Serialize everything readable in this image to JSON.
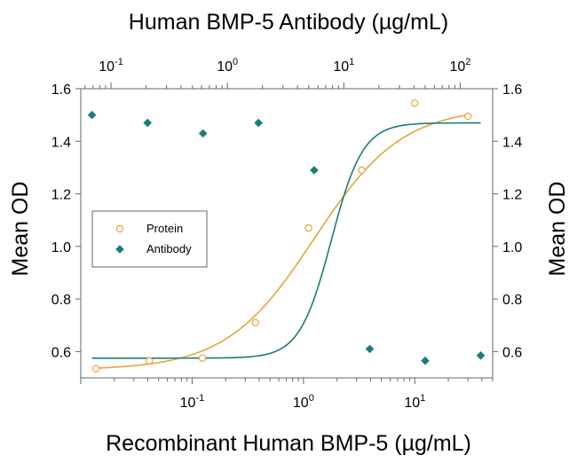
{
  "chart_data": {
    "type": "scatter",
    "title": "Human BMP-5 Antibody (µg/mL)",
    "xlabel": "Recombinant Human BMP-5 (µg/mL)",
    "ylabel": "Mean OD",
    "ylabel_right": "Mean OD",
    "x_scale": "log",
    "xlim": [
      0.01,
      50
    ],
    "top_x_scale": "log",
    "top_xlim": [
      0.055,
      190
    ],
    "ylim": [
      0.5,
      1.6
    ],
    "bottom_ticks": [
      {
        "value": 0.1,
        "base": "10",
        "exp": "-1"
      },
      {
        "value": 1,
        "base": "10",
        "exp": "0"
      },
      {
        "value": 10,
        "base": "10",
        "exp": "1"
      }
    ],
    "top_ticks": [
      {
        "value": 0.1,
        "base": "10",
        "exp": "-1"
      },
      {
        "value": 1,
        "base": "10",
        "exp": "0"
      },
      {
        "value": 10,
        "base": "10",
        "exp": "1"
      },
      {
        "value": 100,
        "base": "10",
        "exp": "2"
      }
    ],
    "y_ticks": [
      "0.6",
      "0.8",
      "1.0",
      "1.2",
      "1.4",
      "1.6"
    ],
    "legend": {
      "position": "left",
      "entries": [
        "Protein",
        "Antibody"
      ]
    },
    "colors": {
      "protein": "#E8A33A",
      "antibody": "#1A7D78"
    },
    "series": [
      {
        "name": "Protein",
        "axis": "bottom",
        "marker": "open-circle",
        "x": [
          0.0137,
          0.0412,
          0.1235,
          0.37,
          1.11,
          3.33,
          10,
          30
        ],
        "y": [
          0.535,
          0.565,
          0.575,
          0.71,
          1.07,
          1.29,
          1.545,
          1.495
        ],
        "fit": {
          "bottom": 0.53,
          "top": 1.53,
          "ec50": 1.25,
          "hill": 1.1
        }
      },
      {
        "name": "Antibody",
        "axis": "top",
        "marker": "filled-diamond",
        "x": [
          0.0686,
          0.206,
          0.617,
          1.85,
          5.56,
          16.7,
          50,
          150
        ],
        "y": [
          1.5,
          1.47,
          1.43,
          1.47,
          1.29,
          0.61,
          0.565,
          0.585
        ],
        "fit": {
          "bottom": 0.575,
          "top": 1.47,
          "ec50": 7.8,
          "hill": 3.2
        }
      }
    ]
  }
}
